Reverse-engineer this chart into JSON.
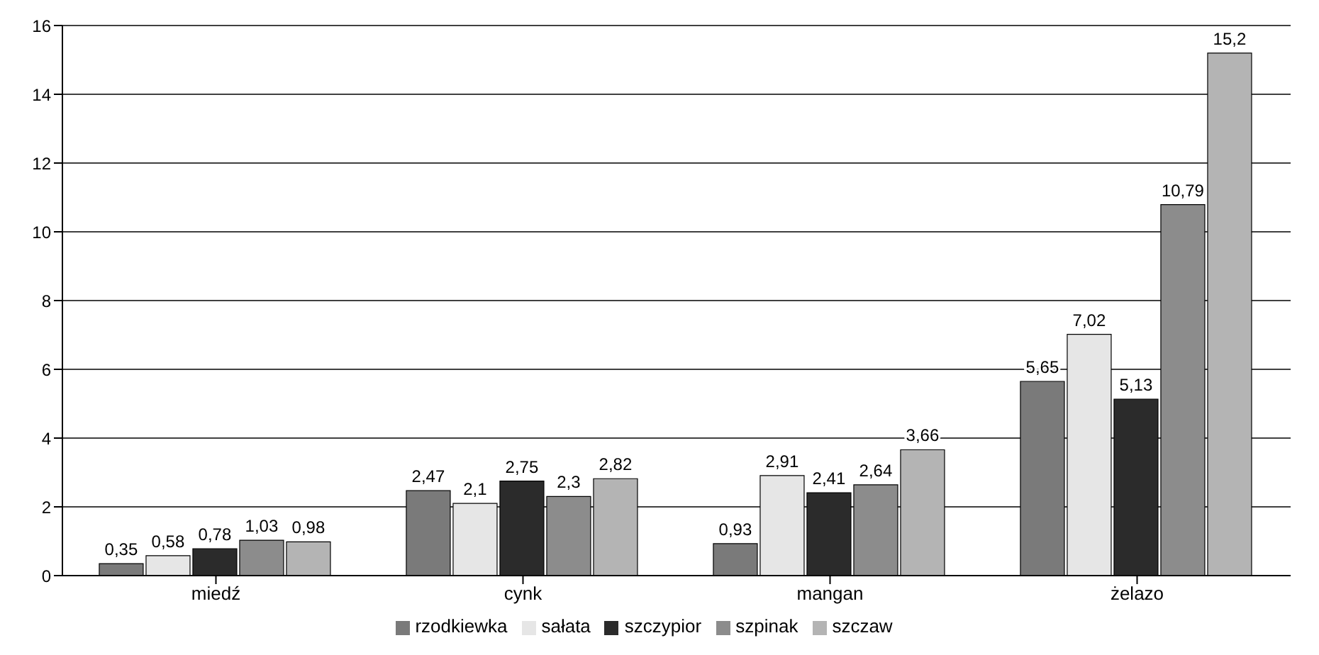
{
  "chart_data": {
    "type": "bar",
    "categories": [
      "miedź",
      "cynk",
      "mangan",
      "żelazo"
    ],
    "series": [
      {
        "name": "rzodkiewka",
        "color": "#7a7a7a",
        "values": [
          0.35,
          2.47,
          0.93,
          5.65
        ],
        "value_labels": [
          "0,35",
          "2,47",
          "0,93",
          "5,65"
        ]
      },
      {
        "name": "sałata",
        "color": "#e6e6e6",
        "values": [
          0.58,
          2.1,
          2.91,
          7.02
        ],
        "value_labels": [
          "0,58",
          "2,1",
          "2,91",
          "7,02"
        ]
      },
      {
        "name": "szczypior",
        "color": "#2b2b2b",
        "values": [
          0.78,
          2.75,
          2.41,
          5.13
        ],
        "value_labels": [
          "0,78",
          "2,75",
          "2,41",
          "5,13"
        ]
      },
      {
        "name": "szpinak",
        "color": "#8c8c8c",
        "values": [
          1.03,
          2.3,
          2.64,
          10.79
        ],
        "value_labels": [
          "1,03",
          "2,3",
          "2,64",
          "10,79"
        ]
      },
      {
        "name": "szczaw",
        "color": "#b4b4b4",
        "values": [
          0.98,
          2.82,
          3.66,
          15.2
        ],
        "value_labels": [
          "0,98",
          "2,82",
          "3,66",
          "15,2"
        ]
      }
    ],
    "ylim": [
      0,
      16
    ],
    "yticks": [
      0,
      2,
      4,
      6,
      8,
      10,
      12,
      14,
      16
    ],
    "grid": "y",
    "legend": "bottom"
  }
}
